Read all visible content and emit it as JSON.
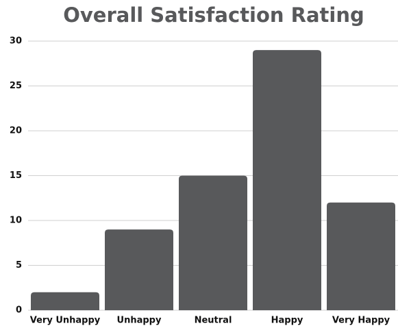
{
  "chart_data": {
    "type": "bar",
    "title": "Overall Satisfaction Rating",
    "categories": [
      "Very Unhappy",
      "Unhappy",
      "Neutral",
      "Happy",
      "Very Happy"
    ],
    "values": [
      2,
      9,
      15,
      29,
      12
    ],
    "color": "#58595b",
    "ylim": [
      0,
      30
    ],
    "yticks": [
      0,
      5,
      10,
      15,
      20,
      25,
      30
    ],
    "grid": true
  }
}
